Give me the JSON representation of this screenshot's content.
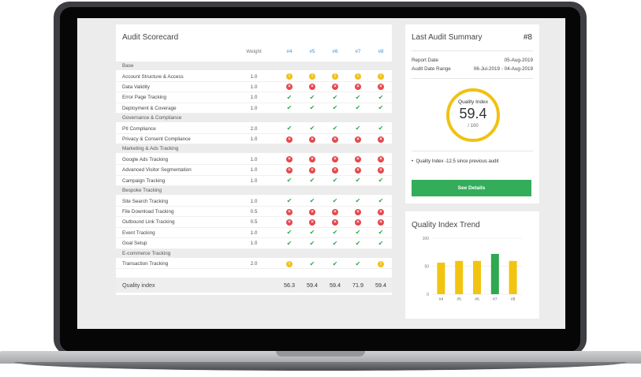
{
  "scorecard": {
    "title": "Audit Scorecard",
    "weight_header": "Weight",
    "audits": [
      "#4",
      "#5",
      "#6",
      "#7",
      "#8"
    ],
    "sections": [
      {
        "name": "Base",
        "rows": [
          {
            "label": "Account Structure & Access",
            "weight": "1.0",
            "results": [
              "warn",
              "warn",
              "warn",
              "warn",
              "warn"
            ]
          },
          {
            "label": "Data Validity",
            "weight": "1.0",
            "results": [
              "fail",
              "fail",
              "fail",
              "fail",
              "fail"
            ]
          },
          {
            "label": "Error Page Tracking",
            "weight": "1.0",
            "results": [
              "pass",
              "pass",
              "pass",
              "pass",
              "pass"
            ]
          },
          {
            "label": "Deployment & Coverage",
            "weight": "1.0",
            "results": [
              "pass",
              "pass",
              "pass",
              "pass",
              "pass"
            ]
          }
        ]
      },
      {
        "name": "Governance & Compliance",
        "rows": [
          {
            "label": "PII Compliance",
            "weight": "2.0",
            "results": [
              "pass",
              "pass",
              "pass",
              "pass",
              "pass"
            ]
          },
          {
            "label": "Privacy & Consent Compliance",
            "weight": "1.0",
            "results": [
              "fail",
              "fail",
              "fail",
              "fail",
              "fail"
            ]
          }
        ]
      },
      {
        "name": "Marketing & Ads Tracking",
        "rows": [
          {
            "label": "Google Ads Tracking",
            "weight": "1.0",
            "results": [
              "fail",
              "fail",
              "fail",
              "fail",
              "fail"
            ]
          },
          {
            "label": "Advanced Visitor Segmentation",
            "weight": "1.0",
            "results": [
              "fail",
              "fail",
              "fail",
              "fail",
              "fail"
            ]
          },
          {
            "label": "Campaign Tracking",
            "weight": "1.0",
            "results": [
              "pass",
              "pass",
              "pass",
              "pass",
              "pass"
            ]
          }
        ]
      },
      {
        "name": "Bespoke Tracking",
        "rows": [
          {
            "label": "Site Search Tracking",
            "weight": "1.0",
            "results": [
              "pass",
              "pass",
              "pass",
              "pass",
              "pass"
            ]
          },
          {
            "label": "File Download Tracking",
            "weight": "0.5",
            "results": [
              "fail",
              "fail",
              "fail",
              "fail",
              "fail"
            ]
          },
          {
            "label": "Outbound Link Tracking",
            "weight": "0.5",
            "results": [
              "fail",
              "fail",
              "fail",
              "fail",
              "fail"
            ]
          },
          {
            "label": "Event Tracking",
            "weight": "1.0",
            "results": [
              "pass",
              "pass",
              "pass",
              "pass",
              "pass"
            ]
          },
          {
            "label": "Goal Setup",
            "weight": "1.0",
            "results": [
              "pass",
              "pass",
              "pass",
              "pass",
              "pass"
            ]
          }
        ]
      },
      {
        "name": "E-commerce Tracking",
        "rows": [
          {
            "label": "Transaction Tracking",
            "weight": "2.0",
            "results": [
              "warn",
              "pass",
              "pass",
              "pass",
              "warn"
            ]
          }
        ]
      }
    ],
    "footer_label": "Quality index",
    "footer_values": [
      "56.3",
      "59.4",
      "59.4",
      "71.9",
      "59.4"
    ],
    "status_icons": {
      "pass": "check-icon",
      "fail": "cross-icon",
      "warn": "warning-icon"
    },
    "status_glyphs": {
      "pass": "✔",
      "fail": "×",
      "warn": "!"
    }
  },
  "summary": {
    "title": "Last Audit Summary",
    "audit_no": "#8",
    "report_date_label": "Report Date",
    "report_date": "05-Aug-2019",
    "range_label": "Audit Date Range",
    "range": "06-Jul-2019 - 04-Aug-2019",
    "gauge_label": "Quality Index",
    "gauge_value": "59.4",
    "gauge_den": "/ 100",
    "bullet": "Quality Index -12.5 since previous audit",
    "button": "See Details"
  },
  "trend": {
    "title": "Quality Index Trend"
  },
  "chart_data": {
    "type": "bar",
    "title": "Quality Index Trend",
    "categories": [
      "#4",
      "#5",
      "#6",
      "#7",
      "#8"
    ],
    "values": [
      56.3,
      59.4,
      59.4,
      71.9,
      59.4
    ],
    "colors": [
      "#f2c412",
      "#f2c412",
      "#f2c412",
      "#2fa84f",
      "#f2c412"
    ],
    "yticks": [
      "0",
      "50",
      "100"
    ],
    "ylim": [
      0,
      100
    ],
    "grid": true
  },
  "colors": {
    "accent_blue": "#3d8fd4",
    "pass": "#2fa84f",
    "fail": "#e5474b",
    "warn": "#f3c016",
    "button": "#34ad5b"
  }
}
